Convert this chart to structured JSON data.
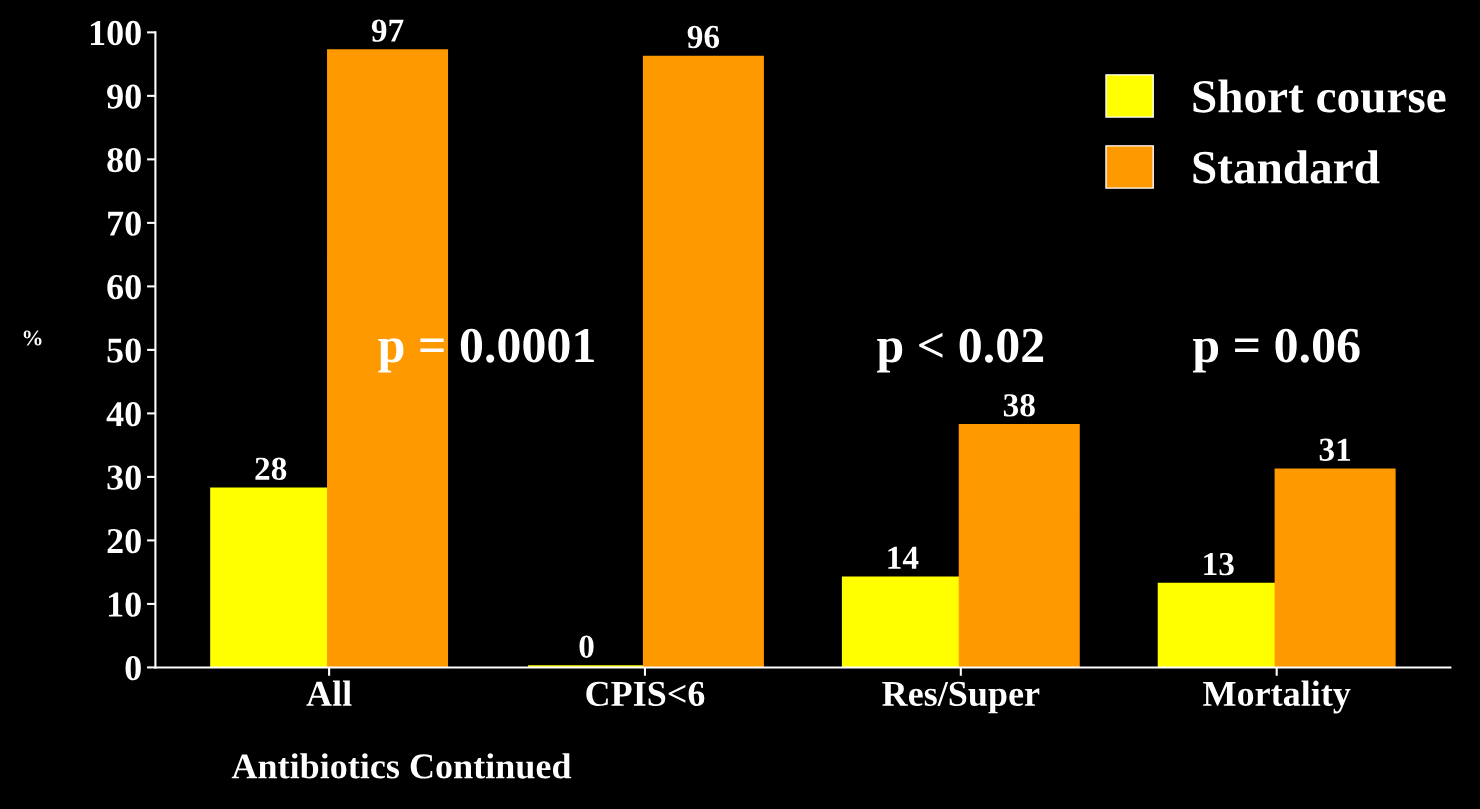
{
  "chart_data": {
    "type": "bar",
    "xlabel": "Antibiotics Continued",
    "ylabel": "%",
    "categories": [
      "All",
      "CPIS<6",
      "Res/Super",
      "Mortality"
    ],
    "series": [
      {
        "name": "Short course",
        "color": "#ffff00",
        "values": [
          28,
          0,
          14,
          13
        ]
      },
      {
        "name": "Standard",
        "color": "#ff9900",
        "values": [
          97,
          96,
          38,
          31
        ]
      }
    ],
    "ylim": [
      0,
      100
    ],
    "yticks": [
      0,
      10,
      20,
      30,
      40,
      50,
      60,
      70,
      80,
      90,
      100
    ],
    "data_labels": true,
    "legend": "top right",
    "grid": false,
    "annotations": [
      "p = 0.0001",
      "p < 0.02",
      "p = 0.06"
    ]
  }
}
